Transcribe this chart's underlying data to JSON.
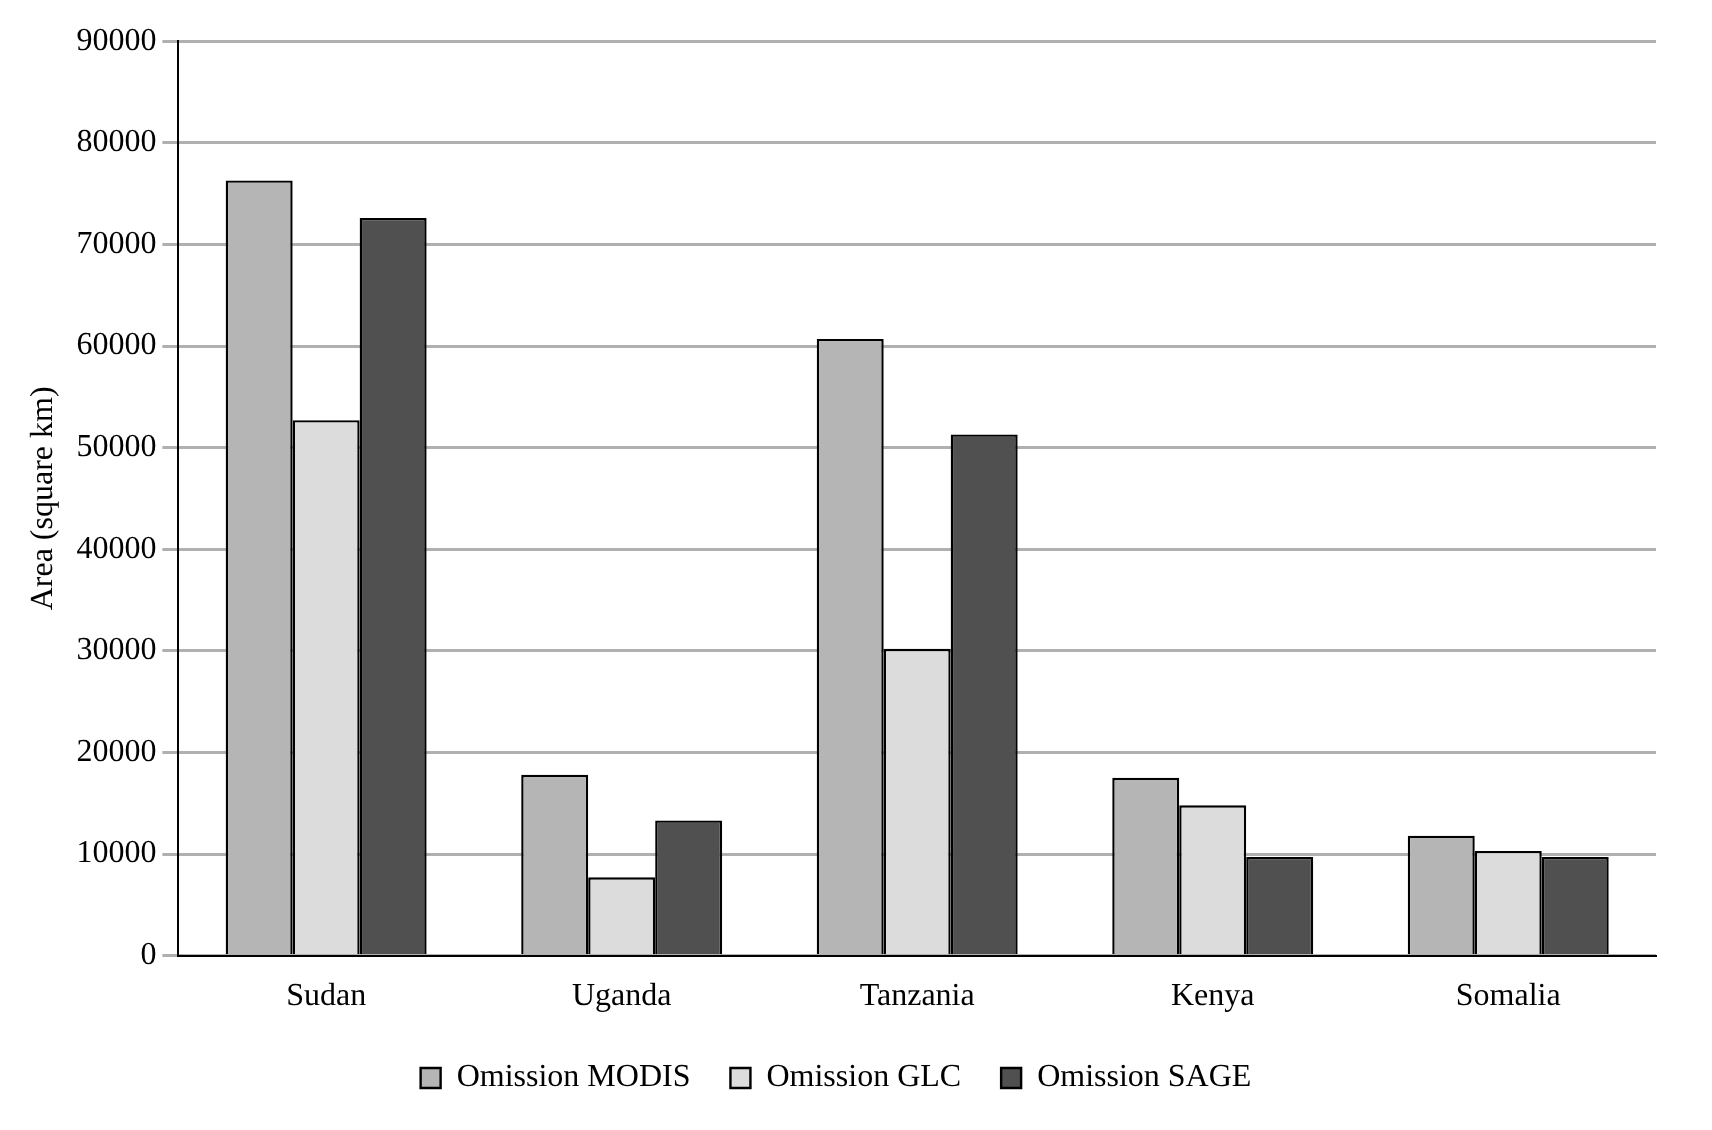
{
  "chart_data": {
    "type": "bar",
    "ylabel": "Area (square km)",
    "categories": [
      "Sudan",
      "Uganda",
      "Tanzania",
      "Kenya",
      "Somalia"
    ],
    "series": [
      {
        "name": "Omission MODIS",
        "color": "#b5b5b5",
        "values": [
          76300,
          17800,
          60700,
          17500,
          11800
        ]
      },
      {
        "name": "Omission GLC",
        "color": "#dcdcdc",
        "values": [
          52700,
          7700,
          30200,
          14800,
          10300
        ]
      },
      {
        "name": "Omission SAGE",
        "color": "#505050",
        "values": [
          72600,
          13300,
          51300,
          9700,
          9700
        ]
      }
    ],
    "ylim": [
      0,
      90000
    ],
    "yticks": [
      0,
      10000,
      20000,
      30000,
      40000,
      50000,
      60000,
      70000,
      80000,
      90000
    ],
    "grid": "y",
    "legend": "bottom"
  }
}
